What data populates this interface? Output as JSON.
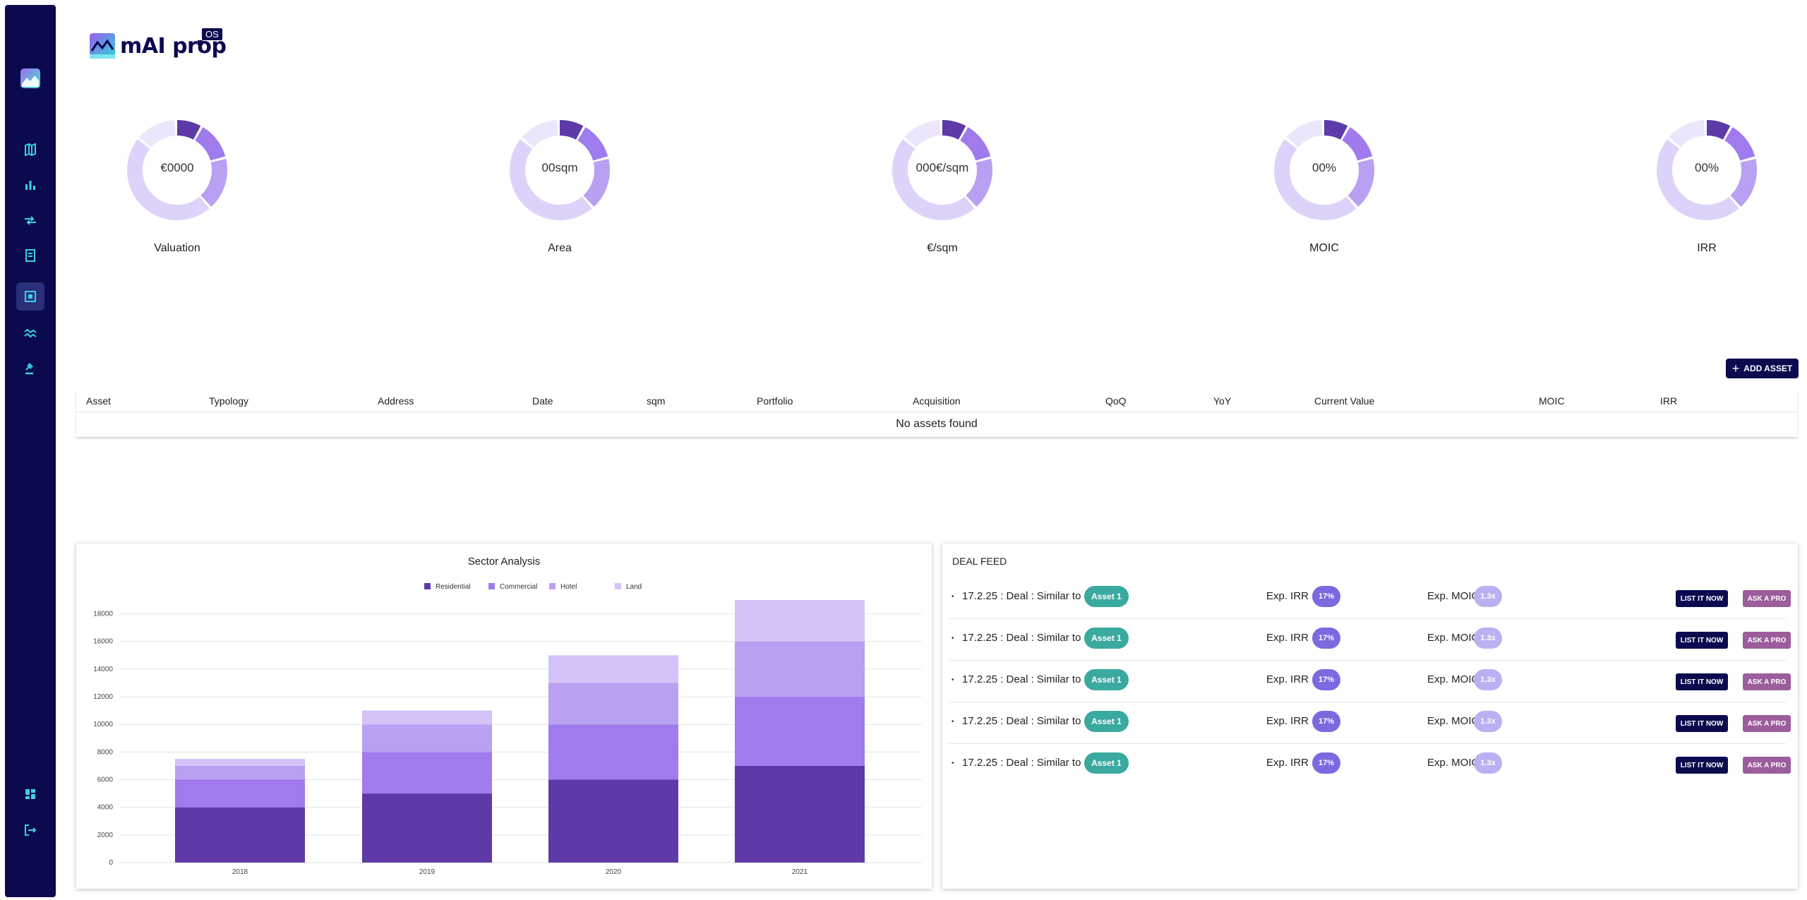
{
  "brand": {
    "name": "mAI prop",
    "badge": "OS"
  },
  "sidebar": {
    "items": [
      {
        "name": "map-icon"
      },
      {
        "name": "bar-chart-icon"
      },
      {
        "name": "transfer-icon"
      },
      {
        "name": "document-icon"
      },
      {
        "name": "portfolio-icon",
        "active": true
      },
      {
        "name": "trend-icon"
      },
      {
        "name": "gavel-icon"
      }
    ],
    "bottom": [
      {
        "name": "dashboard-icon"
      },
      {
        "name": "logout-icon"
      }
    ]
  },
  "kpis": [
    {
      "value": "€0000",
      "label": "Valuation"
    },
    {
      "value": "00sqm",
      "label": "Area"
    },
    {
      "value": "000€/sqm",
      "label": "€/sqm"
    },
    {
      "value": "00%",
      "label": "MOIC"
    },
    {
      "value": "00%",
      "label": "IRR"
    }
  ],
  "add_asset_label": "ADD ASSET",
  "table": {
    "columns": [
      "Asset",
      "Typology",
      "Address",
      "Date",
      "sqm",
      "Portfolio",
      "Acquisition",
      "QoQ",
      "YoY",
      "Current Value",
      "MOIC",
      "IRR"
    ],
    "empty_text": "No assets found"
  },
  "colors": {
    "navy": "#0b0a4f",
    "residential": "#5e3aa8",
    "commercial": "#9f7bed",
    "hotel": "#b9a0f2",
    "land": "#d3c3f8",
    "asset_pill": "#3aa99f",
    "irr_pill": "#7e68e0",
    "moic_pill": "#b9b1f2",
    "ask_button": "#9b5d9b"
  },
  "chart_data": {
    "type": "bar",
    "stacked": true,
    "title": "Sector Analysis",
    "categories": [
      "2018",
      "2019",
      "2020",
      "2021"
    ],
    "series": [
      {
        "name": "Residential",
        "values": [
          4000,
          5000,
          6000,
          7000
        ]
      },
      {
        "name": "Commercial",
        "values": [
          2000,
          3000,
          4000,
          5000
        ]
      },
      {
        "name": "Hotel",
        "values": [
          1000,
          2000,
          3000,
          4000
        ]
      },
      {
        "name": "Land",
        "values": [
          500,
          1000,
          2000,
          3000
        ]
      }
    ],
    "yticks": [
      "0",
      "2000",
      "4000",
      "6000",
      "8000",
      "10000",
      "12000",
      "14000",
      "16000",
      "18000"
    ],
    "ylim": [
      0,
      19000
    ],
    "legend": "top",
    "grid": true
  },
  "deal_feed": {
    "title": "DEAL FEED",
    "rows": [
      {
        "text": "17.2.25 : Deal : Similar to",
        "asset": "Asset 1",
        "irr_label": "Exp. IRR :",
        "irr": "17%",
        "moic_label": "Exp. MOIC",
        "moic": "1.3x",
        "list": "LIST IT NOW",
        "ask": "ASK A PRO"
      },
      {
        "text": "17.2.25 : Deal : Similar to",
        "asset": "Asset 1",
        "irr_label": "Exp. IRR :",
        "irr": "17%",
        "moic_label": "Exp. MOIC",
        "moic": "1.3x",
        "list": "LIST IT NOW",
        "ask": "ASK A PRO"
      },
      {
        "text": "17.2.25 : Deal : Similar to",
        "asset": "Asset 1",
        "irr_label": "Exp. IRR :",
        "irr": "17%",
        "moic_label": "Exp. MOIC",
        "moic": "1.3x",
        "list": "LIST IT NOW",
        "ask": "ASK A PRO"
      },
      {
        "text": "17.2.25 : Deal : Similar to",
        "asset": "Asset 1",
        "irr_label": "Exp. IRR :",
        "irr": "17%",
        "moic_label": "Exp. MOIC",
        "moic": "1.3x",
        "list": "LIST IT NOW",
        "ask": "ASK A PRO"
      },
      {
        "text": "17.2.25 : Deal : Similar to",
        "asset": "Asset 1",
        "irr_label": "Exp. IRR :",
        "irr": "17%",
        "moic_label": "Exp. MOIC",
        "moic": "1.3x",
        "list": "LIST IT NOW",
        "ask": "ASK A PRO"
      }
    ]
  }
}
